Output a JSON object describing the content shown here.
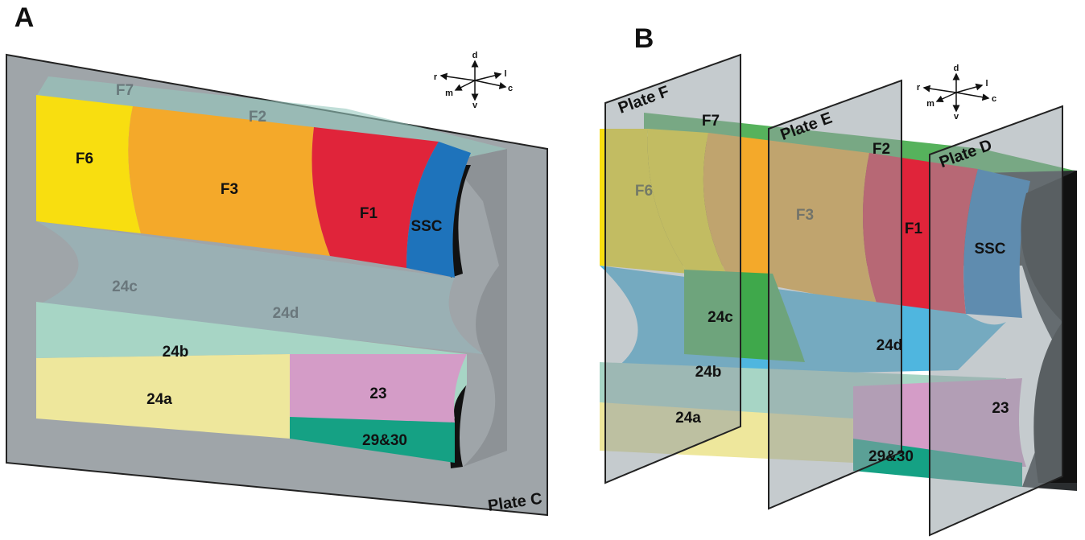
{
  "panels": [
    {
      "label": "A",
      "plates": [
        "Plate C"
      ],
      "regions": [
        "F7",
        "F2",
        "F6",
        "F3",
        "F1",
        "SSC",
        "24c",
        "24d",
        "24b",
        "24a",
        "23",
        "29&30"
      ],
      "compass": [
        "d",
        "r",
        "l",
        "m",
        "c",
        "v"
      ]
    },
    {
      "label": "B",
      "plates": [
        "Plate F",
        "Plate E",
        "Plate D"
      ],
      "regions": [
        "F7",
        "F6",
        "F2",
        "F3",
        "F1",
        "SSC",
        "24c",
        "24d",
        "24b",
        "24a",
        "23",
        "29&30"
      ],
      "compass": [
        "d",
        "r",
        "l",
        "m",
        "c",
        "v"
      ]
    }
  ]
}
